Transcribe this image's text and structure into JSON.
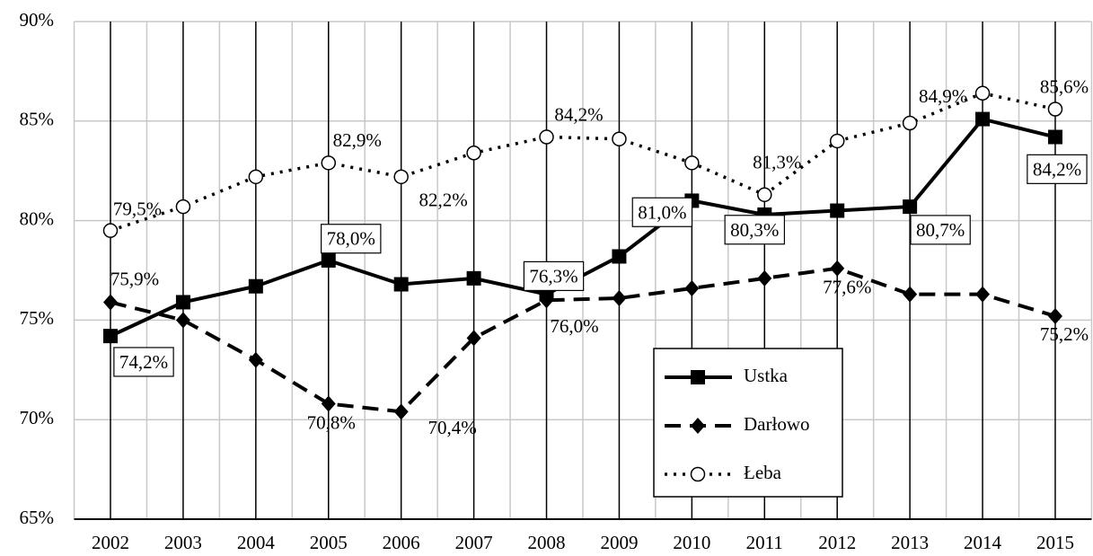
{
  "chart_data": {
    "type": "line",
    "categories": [
      "2002",
      "2003",
      "2004",
      "2005",
      "2006",
      "2007",
      "2008",
      "2009",
      "2010",
      "2011",
      "2012",
      "2013",
      "2014",
      "2015"
    ],
    "ylim": [
      65,
      90
    ],
    "yticks": [
      {
        "value": 65,
        "label": "65%"
      },
      {
        "value": 70,
        "label": "70%"
      },
      {
        "value": 75,
        "label": "75%"
      },
      {
        "value": 80,
        "label": "80%"
      },
      {
        "value": 85,
        "label": "85%"
      },
      {
        "value": 90,
        "label": "90%"
      }
    ],
    "grid": true,
    "series": [
      {
        "name": "Ustka",
        "color": "#000000",
        "line_style": "solid",
        "marker": "square",
        "label_box": true,
        "values": [
          74.2,
          75.9,
          76.7,
          78.0,
          76.8,
          77.1,
          76.3,
          78.2,
          81.0,
          80.3,
          80.5,
          80.7,
          85.1,
          84.2
        ],
        "value_labels": [
          "74,2%",
          null,
          null,
          "78,0%",
          null,
          null,
          "76,3%",
          null,
          "81,0%",
          "80,3%",
          null,
          "80,7%",
          null,
          "84,2%"
        ]
      },
      {
        "name": "Darłowo",
        "color": "#000000",
        "line_style": "dashed",
        "marker": "diamond",
        "label_box": false,
        "values": [
          75.9,
          75.0,
          73.0,
          70.8,
          70.4,
          74.1,
          76.0,
          76.1,
          76.6,
          77.1,
          77.6,
          76.3,
          76.3,
          75.2
        ],
        "value_labels": [
          "75,9%",
          null,
          null,
          "70,8%",
          "70,4%",
          null,
          "76,0%",
          null,
          null,
          null,
          "77,6%",
          null,
          null,
          "75,2%"
        ]
      },
      {
        "name": "Łeba",
        "color": "#000000",
        "line_style": "dotted",
        "marker": "circle",
        "label_box": false,
        "values": [
          79.5,
          80.7,
          82.2,
          82.9,
          82.2,
          83.4,
          84.2,
          84.1,
          82.9,
          81.3,
          84.0,
          84.9,
          86.4,
          85.6
        ],
        "value_labels": [
          "79,5%",
          null,
          null,
          "82,9%",
          "82,2%",
          null,
          "84,2%",
          null,
          null,
          "81,3%",
          null,
          "84,9%",
          null,
          "85,6%"
        ]
      }
    ],
    "legend": "lower-right-center"
  }
}
